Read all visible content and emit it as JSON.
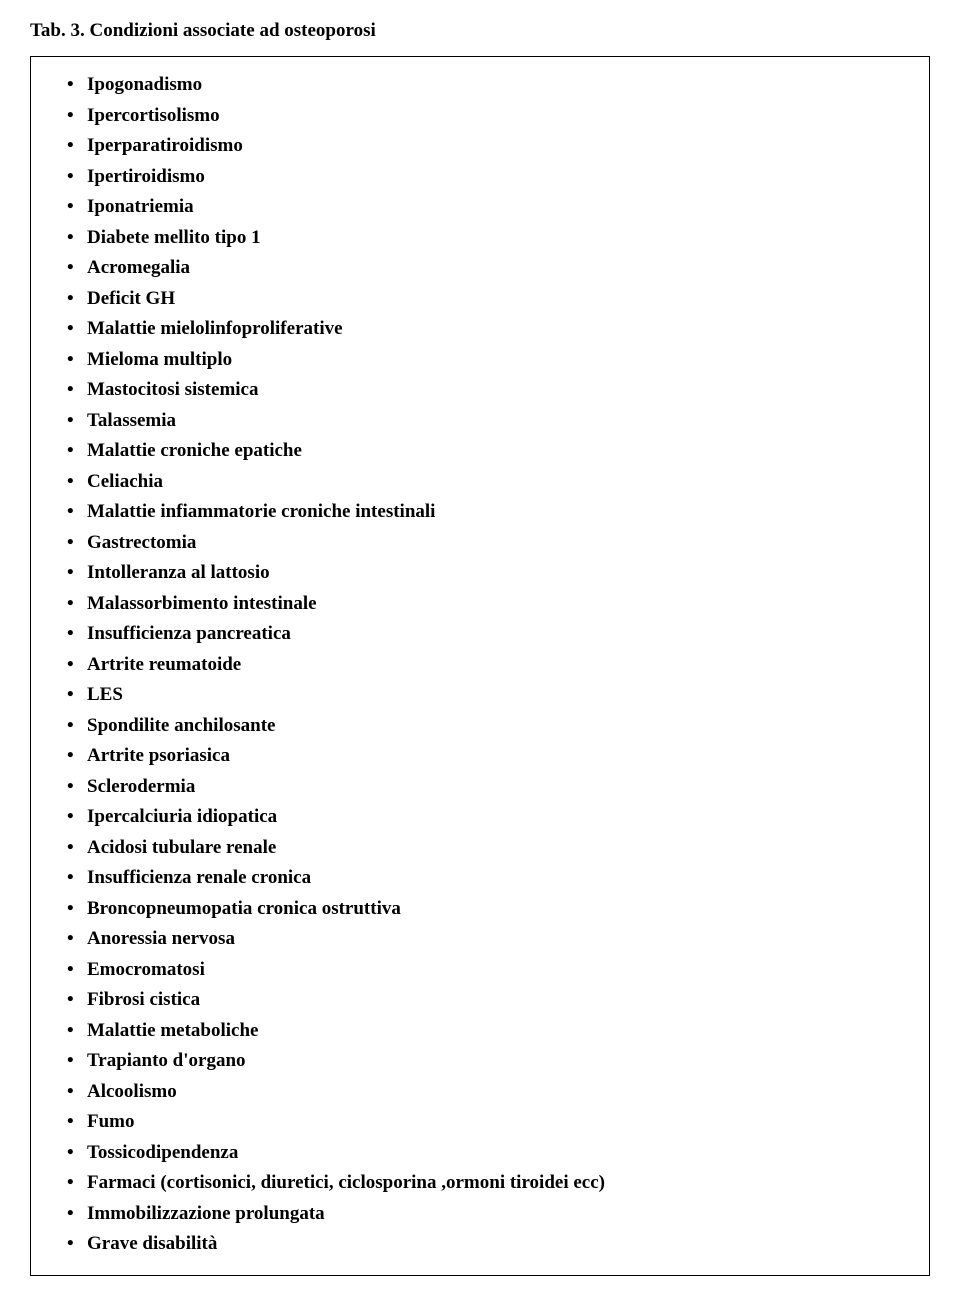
{
  "title": "Tab. 3. Condizioni associate ad osteoporosi",
  "items": [
    "Ipogonadismo",
    "Ipercortisolismo",
    "Iperparatiroidismo",
    "Ipertiroidismo",
    "Iponatriemia",
    "Diabete mellito tipo 1",
    "Acromegalia",
    "Deficit GH",
    "Malattie mielolinfoproliferative",
    "Mieloma multiplo",
    "Mastocitosi sistemica",
    "Talassemia",
    "Malattie croniche epatiche",
    "Celiachia",
    "Malattie infiammatorie croniche intestinali",
    "Gastrectomia",
    "Intolleranza al lattosio",
    "Malassorbimento intestinale",
    "Insufficienza pancreatica",
    "Artrite reumatoide",
    "LES",
    "Spondilite anchilosante",
    "Artrite psoriasica",
    "Sclerodermia",
    "Ipercalciuria idiopatica",
    "Acidosi tubulare renale",
    "Insufficienza renale cronica",
    "Broncopneumopatia cronica ostruttiva",
    "Anoressia nervosa",
    "Emocromatosi",
    "Fibrosi cistica",
    "Malattie metaboliche",
    "Trapianto d'organo",
    "Alcoolismo",
    "Fumo",
    "Tossicodipendenza",
    "Farmaci (cortisonici, diuretici, ciclosporina ,ormoni tiroidei ecc)",
    "Immobilizzazione prolungata",
    "Grave disabilità"
  ]
}
